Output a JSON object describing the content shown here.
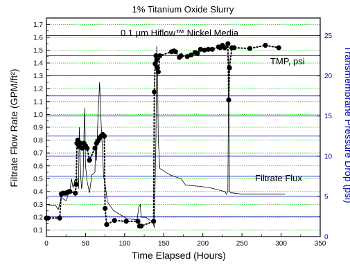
{
  "chart_data": {
    "type": "line",
    "title": "1% Titanium Oxide Slurry",
    "subtitle": "0.1 μm Hiflow™ Nickel Media",
    "xlabel": "Time Elapsed (Hours)",
    "ylabel_left": "Filtrate Flow Rate (GPM/ft²)",
    "ylabel_right": "Transmembrane Pressure Drop (psi)",
    "xlim": [
      0,
      350
    ],
    "ylim_left": [
      0.05,
      1.75
    ],
    "ylim_right": [
      0,
      27.2
    ],
    "x_ticks": [
      "0",
      "50",
      "100",
      "150",
      "200",
      "250",
      "300",
      "350"
    ],
    "y_left_ticks": [
      "0.1",
      "0.2",
      "0.3",
      "0.4",
      "0.5",
      "0.6",
      "0.7",
      "0.8",
      "0.9",
      "1.0",
      "1.1",
      "1.2",
      "1.3",
      "1.4",
      "1.5",
      "1.6",
      "1.7"
    ],
    "y_right_ticks": [
      "0",
      "5",
      "10",
      "15",
      "20",
      "25"
    ],
    "grid": true,
    "annotations": {
      "tmp": "TMP, psi",
      "flux": "Filtrate Flux"
    },
    "colors": {
      "left_axis": "#000000",
      "right_axis": "#0000aa",
      "grid_left": "#00cc00",
      "grid_right": "#0000cc",
      "series": "#000000"
    },
    "series": [
      {
        "name": "TMP, psi",
        "axis": "right",
        "style": "dotted-markers",
        "x": [
          0,
          2,
          17,
          19,
          21,
          23,
          25,
          27,
          29,
          30,
          37,
          38,
          39,
          40,
          41,
          42,
          44,
          46,
          48,
          50,
          52,
          55,
          62,
          64,
          66,
          68,
          70,
          72,
          74,
          75,
          77,
          87,
          102,
          117,
          119,
          121,
          137,
          138,
          139,
          140,
          141,
          142,
          143,
          145,
          160,
          163,
          165,
          170,
          172,
          180,
          185,
          190,
          193,
          197,
          202,
          207,
          212,
          220,
          222,
          225,
          228,
          232,
          233,
          234,
          237,
          240,
          260,
          280,
          297
        ],
        "y": [
          2.3,
          2.3,
          2.3,
          5.3,
          5.4,
          5.4,
          5.4,
          5.5,
          5.6,
          5.6,
          5.4,
          6.5,
          11.6,
          12.0,
          11.8,
          11.2,
          11.6,
          11.0,
          11.6,
          11.3,
          11.0,
          9.5,
          11.0,
          11.6,
          11.9,
          12.3,
          12.5,
          12.7,
          12.5,
          3.5,
          1.5,
          2.0,
          1.9,
          1.9,
          1.3,
          1.3,
          1.9,
          18.0,
          21.5,
          22.5,
          22.0,
          21.0,
          20.5,
          22.5,
          23.0,
          23.1,
          23.0,
          22.3,
          22.5,
          22.4,
          22.6,
          22.9,
          22.8,
          23.3,
          23.2,
          23.3,
          23.3,
          23.6,
          23.5,
          23.8,
          23.5,
          24.0,
          17.0,
          21.0,
          23.5,
          23.5,
          23.4,
          23.8,
          23.5
        ]
      },
      {
        "name": "Filtrate Flux",
        "axis": "left",
        "style": "line",
        "x": [
          0,
          7,
          12,
          15,
          17,
          19,
          22,
          25,
          30,
          32,
          34,
          36,
          37,
          38,
          39,
          40,
          41,
          42,
          43,
          44,
          45,
          47,
          48,
          49,
          50,
          52,
          55,
          58,
          62,
          63,
          64,
          66,
          67,
          68,
          70,
          72,
          73,
          75,
          78,
          86,
          100,
          102,
          116,
          118,
          120,
          121,
          127,
          136,
          138,
          140,
          141,
          142,
          143,
          145,
          150,
          158,
          172,
          178,
          197,
          209,
          228,
          230,
          232,
          233,
          234,
          236,
          238,
          250,
          270,
          287,
          305
        ],
        "y": [
          0.3,
          0.29,
          0.29,
          0.26,
          0.3,
          0.36,
          0.34,
          0.33,
          0.41,
          0.5,
          0.43,
          0.48,
          0.5,
          0.46,
          0.5,
          0.5,
          0.42,
          0.9,
          0.68,
          0.5,
          0.42,
          0.52,
          0.85,
          1.05,
          0.6,
          0.48,
          0.39,
          0.53,
          0.55,
          0.81,
          0.64,
          1.0,
          1.11,
          1.25,
          0.92,
          0.68,
          0.52,
          0.46,
          0.32,
          0.25,
          0.2,
          0.19,
          0.18,
          0.28,
          0.3,
          0.2,
          0.2,
          0.16,
          0.12,
          0.82,
          1.53,
          1.35,
          0.8,
          0.58,
          0.56,
          0.53,
          0.5,
          0.45,
          0.44,
          0.43,
          0.4,
          0.38,
          0.4,
          1.45,
          0.4,
          0.39,
          0.39,
          0.38,
          0.38,
          0.38,
          0.38
        ]
      }
    ]
  }
}
